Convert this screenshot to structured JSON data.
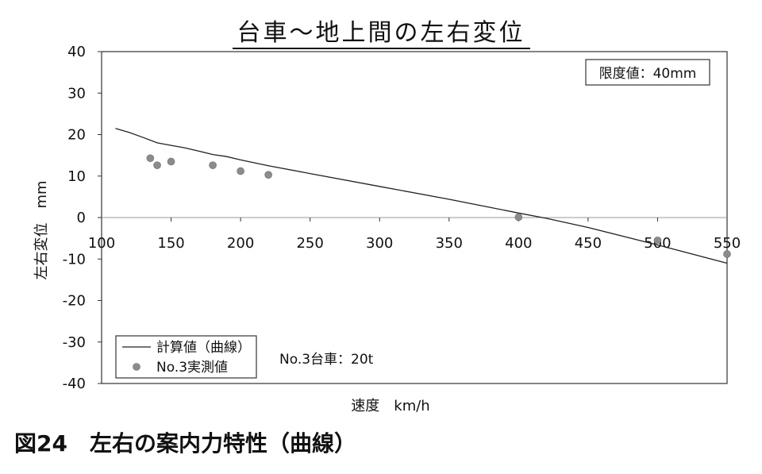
{
  "chart_data": {
    "type": "line",
    "title": "台車～地上間の左右変位",
    "xlabel": "速度　km/h",
    "ylabel": "左右変位　mm",
    "xlim": [
      100,
      550
    ],
    "ylim": [
      -40,
      40
    ],
    "x_ticks": [
      "100",
      "150",
      "200",
      "250",
      "300",
      "350",
      "400",
      "450",
      "500",
      "550"
    ],
    "y_ticks": [
      "40",
      "30",
      "20",
      "10",
      "0",
      "-10",
      "-20",
      "-30",
      "-40"
    ],
    "grid": false,
    "limit_note": "限度値：40mm",
    "vehicle_note": "No.3台車：20t",
    "legend_position": "bottom-left",
    "series": [
      {
        "name": "計算値（曲線）",
        "kind": "line",
        "color": "#222222",
        "x": [
          110,
          120,
          130,
          140,
          150,
          160,
          170,
          180,
          190,
          200,
          220,
          250,
          300,
          350,
          400,
          420,
          450,
          500,
          550
        ],
        "y": [
          21.5,
          20.5,
          19.3,
          18.0,
          17.4,
          16.8,
          16.0,
          15.2,
          14.7,
          13.9,
          12.5,
          10.6,
          7.5,
          4.4,
          1.1,
          -0.2,
          -2.4,
          -6.6,
          -11.0
        ]
      },
      {
        "name": "No.3実測値",
        "kind": "scatter",
        "color": "#8c8c8c",
        "x": [
          135,
          140,
          150,
          180,
          200,
          220,
          400,
          500,
          550
        ],
        "y": [
          14.3,
          12.6,
          13.5,
          12.6,
          11.2,
          10.3,
          0.1,
          -5.5,
          -8.8
        ]
      }
    ]
  },
  "caption": "図24　左右の案内力特性（曲線）"
}
